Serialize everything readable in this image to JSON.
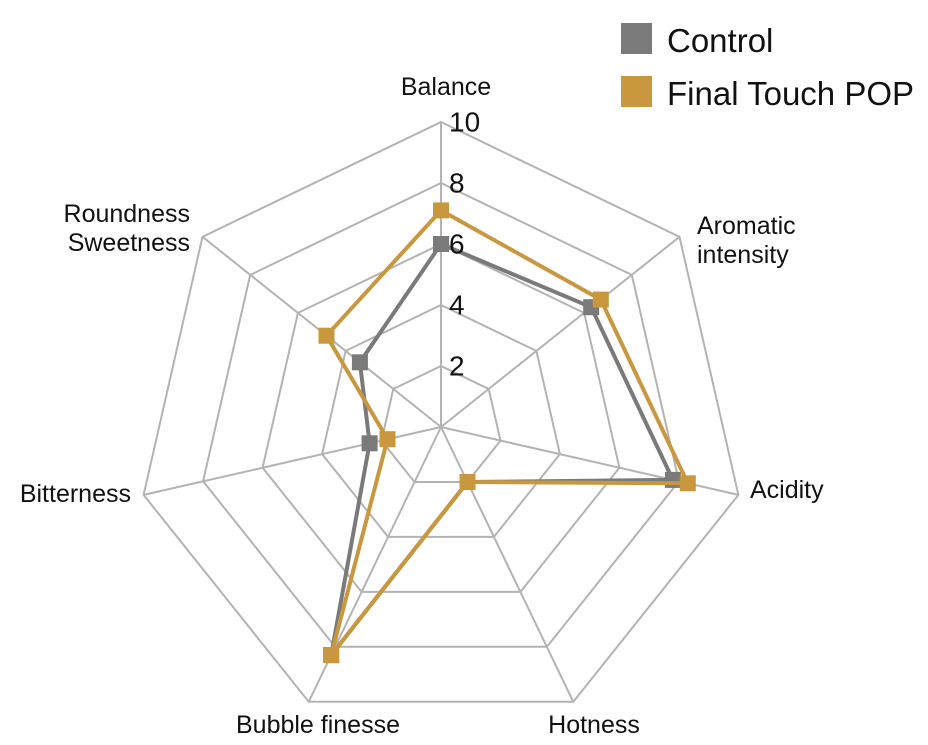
{
  "chart_data": {
    "type": "radar",
    "axes": [
      "Balance",
      "Aromatic intensity",
      "Acidity",
      "Hotness",
      "Bubble finesse",
      "Bitterness",
      "Roundness Sweetness"
    ],
    "axis_label_lines": [
      [
        "Balance"
      ],
      [
        "Aromatic",
        "intensity"
      ],
      [
        "Acidity"
      ],
      [
        "Hotness"
      ],
      [
        "Bubble finesse"
      ],
      [
        "Bitterness"
      ],
      [
        "Roundness",
        "Sweetness"
      ]
    ],
    "rlim": [
      0,
      10
    ],
    "ticks": [
      2,
      4,
      6,
      8,
      10
    ],
    "grid": true,
    "legend_position": "top-right",
    "series": [
      {
        "name": "Control",
        "color": "#7a7a7a",
        "values": [
          6.0,
          6.3,
          7.8,
          2.0,
          8.3,
          2.4,
          3.4
        ]
      },
      {
        "name": "Final Touch POP",
        "color": "#c8973e",
        "values": [
          7.1,
          6.7,
          8.3,
          2.0,
          8.3,
          1.8,
          4.8
        ]
      }
    ]
  }
}
